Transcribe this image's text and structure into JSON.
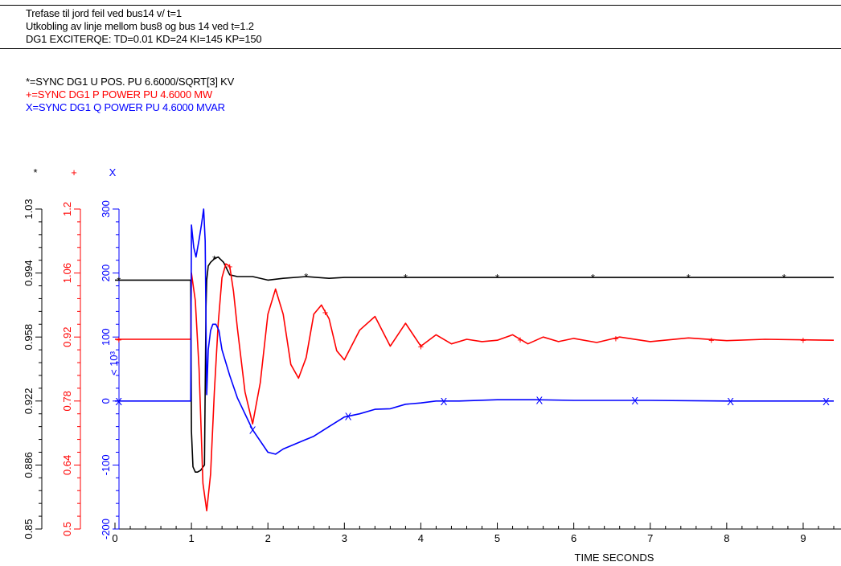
{
  "header": {
    "lines": [
      "Trefase til jord feil ved bus14 v/ t=1",
      "Utkobling av linje mellom bus8 og bus 14 ved t=1.2",
      "DG1 EXCITERQE: TD=0.01 KD=24 KI=145 KP=150"
    ]
  },
  "legend": [
    {
      "text": "*=SYNC  DG1  U POS.    PU  6.6000/SQRT[3] KV",
      "color": "#000000"
    },
    {
      "text": "+=SYNC  DG1  P POWER   PU  4.6000 MW",
      "color": "#ff0000"
    },
    {
      "text": "X=SYNC  DG1  Q POWER   PU  4.6000 MVAR",
      "color": "#0000ff"
    }
  ],
  "chart_data": {
    "type": "line",
    "xlabel": "TIME SECONDS",
    "xlim": [
      0,
      9.4
    ],
    "x_ticks": [
      "0",
      "1",
      "2",
      "3",
      "4",
      "5",
      "6",
      "7",
      "8",
      "9"
    ],
    "axes": [
      {
        "marker": "*",
        "color": "#000000",
        "ylim": [
          0.85,
          1.03
        ],
        "ticks": [
          "0.85",
          "0.886",
          "0.922",
          "0.958",
          "0.994",
          "1.03"
        ]
      },
      {
        "marker": "+",
        "color": "#ff0000",
        "ylim": [
          0.5,
          1.2
        ],
        "ticks": [
          "0.5",
          "0.64",
          "0.78",
          "0.92",
          "1.06",
          "1.2"
        ]
      },
      {
        "marker": "X",
        "color": "#0000ff",
        "ylim": [
          -200,
          300
        ],
        "scale_label": "< 10³",
        "ticks": [
          "-200",
          "-100",
          "0",
          "100",
          "200",
          "300"
        ]
      }
    ],
    "series": [
      {
        "marker": "*",
        "color": "#000000",
        "axis": 0,
        "x": [
          0,
          0.99,
          1.0,
          1.02,
          1.05,
          1.08,
          1.12,
          1.17,
          1.19,
          1.2,
          1.22,
          1.25,
          1.3,
          1.35,
          1.42,
          1.5,
          1.6,
          1.8,
          2.0,
          2.2,
          2.5,
          2.8,
          3.0,
          3.5,
          4.0,
          5.0,
          6.0,
          7.0,
          8.0,
          9.4
        ],
        "y": [
          0.99,
          0.99,
          0.905,
          0.885,
          0.882,
          0.882,
          0.883,
          0.886,
          0.975,
          0.99,
          0.998,
          1.0,
          1.002,
          1.003,
          1.0,
          0.993,
          0.992,
          0.992,
          0.99,
          0.991,
          0.992,
          0.991,
          0.9915,
          0.9915,
          0.9915,
          0.9915,
          0.9915,
          0.9915,
          0.9915,
          0.9915
        ],
        "markers_x": [
          0.05,
          1.3,
          2.5,
          3.8,
          5.0,
          6.25,
          7.5,
          8.75
        ]
      },
      {
        "marker": "+",
        "color": "#ff0000",
        "axis": 1,
        "x": [
          0,
          0.99,
          1.0,
          1.05,
          1.1,
          1.15,
          1.2,
          1.25,
          1.3,
          1.35,
          1.4,
          1.45,
          1.5,
          1.55,
          1.6,
          1.7,
          1.8,
          1.9,
          2.0,
          2.1,
          2.2,
          2.3,
          2.4,
          2.5,
          2.6,
          2.7,
          2.8,
          2.9,
          3.0,
          3.2,
          3.4,
          3.6,
          3.8,
          4.0,
          4.2,
          4.4,
          4.6,
          4.8,
          5.0,
          5.2,
          5.4,
          5.6,
          5.8,
          6.0,
          6.3,
          6.6,
          7.0,
          7.5,
          8.0,
          8.5,
          9.4
        ],
        "y": [
          0.915,
          0.915,
          1.06,
          1.0,
          0.85,
          0.6,
          0.54,
          0.62,
          0.8,
          0.95,
          1.05,
          1.08,
          1.075,
          1.02,
          0.94,
          0.8,
          0.73,
          0.82,
          0.97,
          1.025,
          0.97,
          0.86,
          0.83,
          0.875,
          0.97,
          0.99,
          0.96,
          0.89,
          0.87,
          0.935,
          0.965,
          0.9,
          0.95,
          0.9,
          0.925,
          0.905,
          0.915,
          0.91,
          0.913,
          0.925,
          0.905,
          0.92,
          0.91,
          0.917,
          0.908,
          0.92,
          0.91,
          0.918,
          0.912,
          0.915,
          0.913
        ],
        "markers_x": [
          0.05,
          1.5,
          2.75,
          4.0,
          5.3,
          6.55,
          7.8,
          9.0
        ]
      },
      {
        "marker": "X",
        "color": "#0000ff",
        "axis": 2,
        "x": [
          0,
          0.99,
          1.0,
          1.03,
          1.06,
          1.1,
          1.13,
          1.16,
          1.18,
          1.2,
          1.22,
          1.25,
          1.28,
          1.32,
          1.36,
          1.4,
          1.5,
          1.6,
          1.8,
          2.0,
          2.1,
          2.2,
          2.4,
          2.6,
          2.8,
          3.0,
          3.2,
          3.4,
          3.6,
          3.8,
          4.0,
          4.2,
          4.5,
          5.0,
          5.5,
          6.0,
          7.0,
          8.0,
          9.4
        ],
        "y": [
          0,
          0,
          275,
          240,
          225,
          252,
          275,
          300,
          250,
          10,
          80,
          110,
          120,
          120,
          110,
          80,
          40,
          5,
          -45,
          -80,
          -83,
          -75,
          -65,
          -55,
          -40,
          -25,
          -20,
          -13,
          -12,
          -5,
          -3,
          0,
          0,
          2,
          2,
          1,
          1,
          0,
          0
        ],
        "markers_x": [
          0.05,
          1.8,
          3.05,
          4.3,
          5.55,
          6.8,
          8.05,
          9.3
        ]
      }
    ]
  }
}
